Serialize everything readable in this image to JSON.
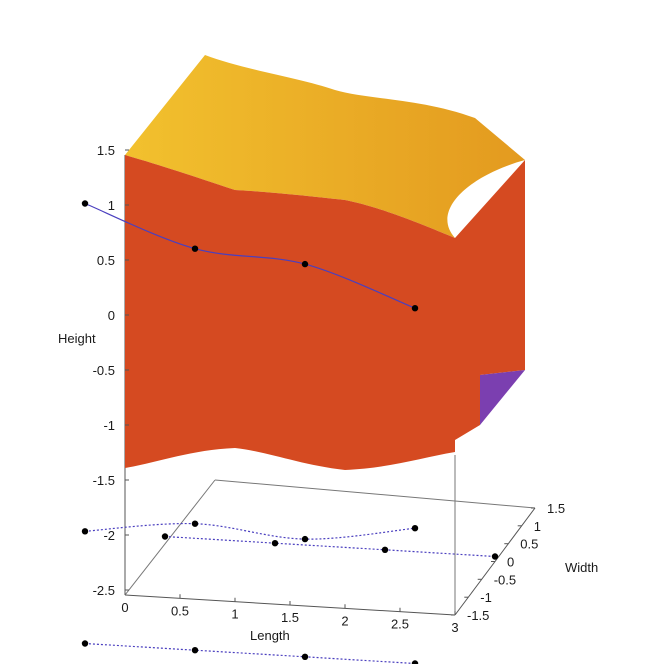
{
  "chart_data": {
    "type": "surface3d",
    "title": "",
    "xlabel": "Length",
    "ylabel": "Width",
    "zlabel": "Height",
    "x_ticks": [
      "0",
      "0.5",
      "1",
      "1.5",
      "2",
      "2.5",
      "3"
    ],
    "y_ticks": [
      "-1.5",
      "-1",
      "-0.5",
      "0",
      "0.5",
      "1",
      "1.5"
    ],
    "z_ticks": [
      "1.5",
      "1",
      "0.5",
      "0",
      "-0.5",
      "-1",
      "-1.5",
      "-2",
      "-2.5"
    ],
    "xlim": [
      0,
      3
    ],
    "ylim": [
      -1.5,
      1.5
    ],
    "zlim": [
      -2.5,
      1.5
    ],
    "grid": false,
    "colors": {
      "surface_top": "#f2c12e",
      "surface_top_dark": "#e39a1f",
      "surface_front": "#d54a21",
      "surface_corner": "#7b3fb0",
      "curve": "#4a3fbf",
      "point": "#000000",
      "axis": "#555555"
    },
    "series": [
      {
        "x": [
          0,
          1,
          2,
          3
        ],
        "y": [
          -1.5,
          -1.5,
          -1.5,
          -1.5
        ],
        "z": [
          1.5,
          1.15,
          1.07,
          0.73
        ]
      },
      {
        "x": [
          0,
          1,
          2,
          3
        ],
        "y": [
          -1.5,
          -1.5,
          -1.5,
          -1.5
        ],
        "z": [
          -1.48,
          -1.35,
          -1.43,
          -1.27
        ]
      },
      {
        "x": [
          0,
          1,
          2,
          3
        ],
        "y": [
          1.5,
          1.5,
          1.5,
          1.5
        ],
        "z": [
          -2.5,
          -2.5,
          -2.5,
          -2.5
        ]
      },
      {
        "x": [
          0,
          1,
          2,
          3
        ],
        "y": [
          -1.5,
          -1.5,
          -1.5,
          -1.5
        ],
        "z": [
          -2.5,
          -2.5,
          -2.5,
          -2.5
        ]
      }
    ]
  }
}
